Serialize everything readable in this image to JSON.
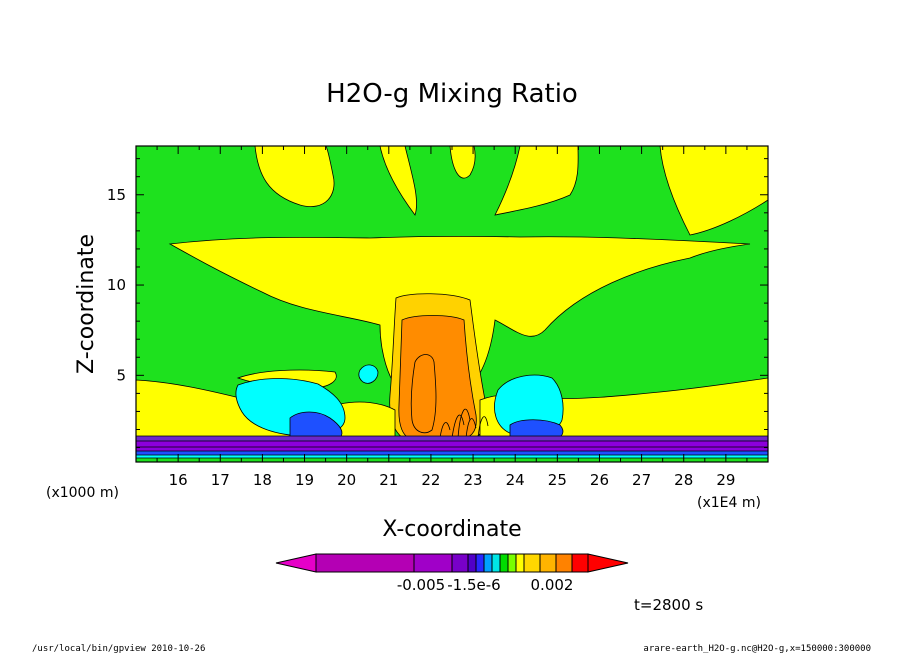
{
  "chart_data": {
    "type": "heatmap",
    "title": "H2O-g Mixing Ratio",
    "xlabel": "X-coordinate",
    "ylabel": "Z-coordinate",
    "x_unit": "(x1E4 m)",
    "y_unit": "(x1000 m)",
    "xlim": [
      15.0,
      30.0
    ],
    "ylim": [
      0.2,
      17.7
    ],
    "x_ticks": [
      "16",
      "17",
      "18",
      "19",
      "20",
      "21",
      "22",
      "23",
      "24",
      "25",
      "26",
      "27",
      "28",
      "29"
    ],
    "y_ticks": [
      "5",
      "10",
      "15"
    ],
    "colorbar": {
      "labels": [
        "-0.005",
        "-1.5e-6",
        "0.002"
      ],
      "colors": [
        "#e600c8",
        "#b400b4",
        "#a000c8",
        "#7800c8",
        "#5000c8",
        "#2828ff",
        "#00a0ff",
        "#00e6e6",
        "#00dc00",
        "#78ff00",
        "#ffff00",
        "#ffd700",
        "#ffb400",
        "#ff8200",
        "#ff0000"
      ]
    },
    "contour_colors": {
      "background": "#1ee11e",
      "yellow": "#ffff00",
      "gold": "#ffd200",
      "orange": "#ff8c00",
      "cyan": "#00ffff",
      "blue": "#1e50ff",
      "purple": "#8c00dc",
      "violet": "#6e28c8"
    },
    "time_label": "t=2800 s"
  },
  "footer": {
    "left": "/usr/local/bin/gpview  2010-10-26",
    "right": "arare-earth_H2O-g.nc@H2O-g,x=150000:300000"
  }
}
